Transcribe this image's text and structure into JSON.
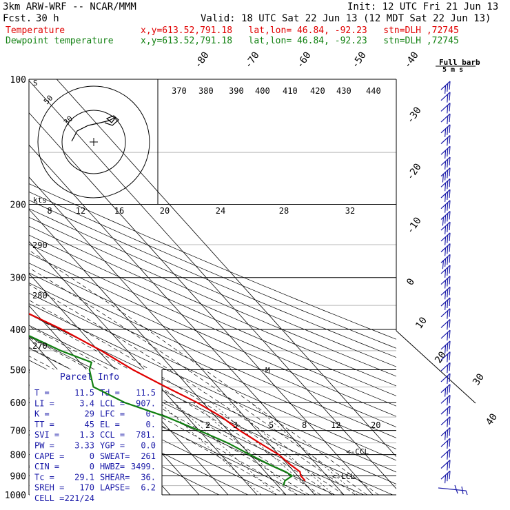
{
  "header": {
    "model": "3km ARW-WRF -- NCAR/MMM",
    "init": "Init: 12 UTC Fri 21 Jun 13",
    "fcst_label": "Fcst.",
    "fcst_value": "30 h",
    "valid": "Valid: 18 UTC Sat 22 Jun 13 (12 MDT Sat 22 Jun 13)",
    "temp_label": "Temperature",
    "dew_label": "Dewpoint temperature",
    "location": "x,y=613.52,791.18   lat,lon= 46.84, -92.23   stn=DLH ,72745"
  },
  "colors": {
    "temperature": "#e00000",
    "dewpoint": "#108010",
    "barbs": "#1a1aa8"
  },
  "chart_data": {
    "type": "line",
    "title": "",
    "pressure_ticks": [
      100,
      200,
      300,
      400,
      500,
      600,
      700,
      800,
      900,
      1000
    ],
    "isotherm_labels": [
      -80,
      -70,
      -60,
      -50,
      -40,
      -30,
      -20,
      -10,
      0,
      10,
      20,
      30,
      40
    ],
    "theta_labels": [
      370,
      380,
      390,
      400,
      410,
      420,
      430,
      440,
      290,
      280,
      270
    ],
    "mixing_ratio_labels": [
      2,
      3,
      5,
      8,
      12,
      20
    ],
    "series": [
      {
        "name": "Temperature",
        "points": [
          [
            100,
            -45
          ],
          [
            120,
            -51
          ],
          [
            140,
            -57
          ],
          [
            160,
            -59
          ],
          [
            180,
            -59
          ],
          [
            200,
            -60
          ],
          [
            250,
            -55
          ],
          [
            300,
            -47
          ],
          [
            350,
            -36
          ],
          [
            400,
            -26
          ],
          [
            450,
            -19
          ],
          [
            500,
            -14
          ],
          [
            550,
            -8
          ],
          [
            600,
            -2
          ],
          [
            650,
            2
          ],
          [
            700,
            4
          ],
          [
            750,
            7
          ],
          [
            800,
            10
          ],
          [
            850,
            11
          ],
          [
            880,
            12
          ],
          [
            900,
            11
          ],
          [
            925,
            11
          ]
        ]
      },
      {
        "name": "Dewpoint temperature",
        "points": [
          [
            100,
            -76
          ],
          [
            120,
            -76
          ],
          [
            150,
            -74
          ],
          [
            170,
            -74
          ],
          [
            190,
            -74
          ],
          [
            200,
            -72
          ],
          [
            250,
            -65
          ],
          [
            300,
            -58
          ],
          [
            350,
            -53
          ],
          [
            400,
            -42
          ],
          [
            450,
            -33
          ],
          [
            480,
            -26
          ],
          [
            500,
            -29
          ],
          [
            550,
            -33
          ],
          [
            600,
            -27
          ],
          [
            650,
            -17
          ],
          [
            700,
            -10
          ],
          [
            750,
            -4
          ],
          [
            800,
            0
          ],
          [
            850,
            4
          ],
          [
            880,
            7
          ],
          [
            900,
            8
          ],
          [
            925,
            4
          ],
          [
            950,
            2
          ]
        ]
      }
    ]
  },
  "hodograph": {
    "kts_label": "kts",
    "rings": [
      "50",
      "30"
    ],
    "speed_labels": [
      "8",
      "12",
      "16",
      "20",
      "24",
      "28",
      "32"
    ]
  },
  "barb_legend": {
    "title": "Full barb",
    "unit": "5 m s"
  },
  "parcel": {
    "title": "Parcel Info",
    "rows": [
      [
        "T  =",
        "11.5",
        "Td =",
        "11.5"
      ],
      [
        "LI =",
        "3.4",
        "LCL =",
        "907."
      ],
      [
        "K  =",
        "29",
        "LFC =",
        "0."
      ],
      [
        "TT =",
        "45",
        "EL =",
        "0."
      ],
      [
        "SVI =",
        "1.3",
        "CCL =",
        "781."
      ],
      [
        "PW =",
        "3.33",
        "YGP =",
        "0.0"
      ],
      [
        "CAPE =",
        "0",
        "SWEAT=",
        "261"
      ],
      [
        "CIN =",
        "0",
        "HWBZ=",
        "3499."
      ],
      [
        "Tc =",
        "29.1",
        "SHEAR=",
        "36."
      ],
      [
        "SREH =",
        "170",
        "LAPSE=",
        "6.2"
      ],
      [
        "CELL =",
        "221/24",
        "",
        ""
      ]
    ]
  },
  "annotations": {
    "ccl": "<-CCL",
    "lcl": "<-LCL",
    "mark": "M"
  }
}
